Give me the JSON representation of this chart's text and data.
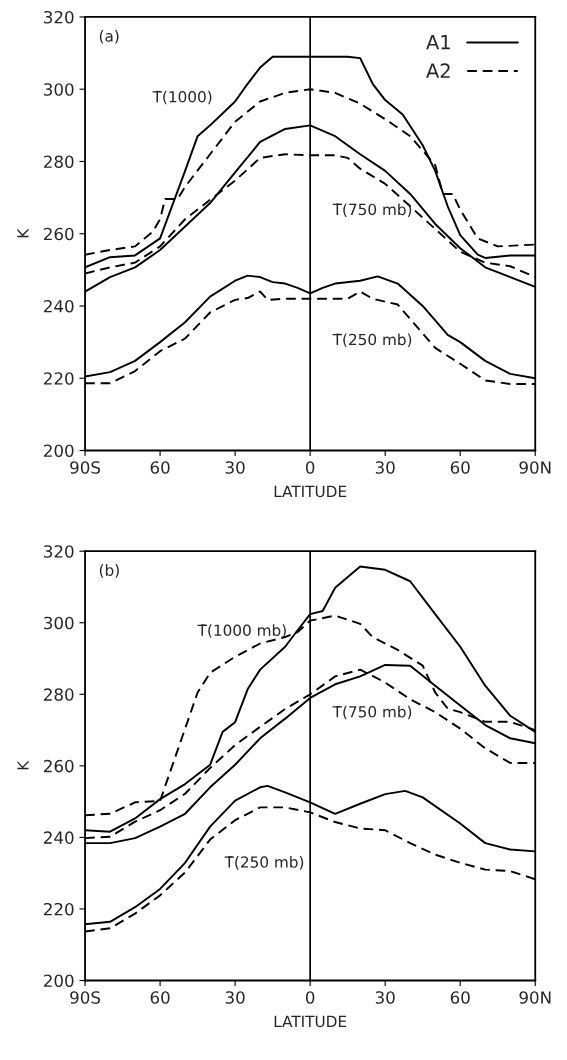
{
  "chart_data": [
    {
      "type": "line",
      "xlabel": "LATITUDE",
      "ylabel": "K",
      "xlim": [
        -90,
        90
      ],
      "ylim": [
        200,
        320
      ],
      "xticks": [
        {
          "value": -90,
          "label": "90S"
        },
        {
          "value": -60,
          "label": "60"
        },
        {
          "value": -30,
          "label": "30"
        },
        0,
        30,
        60,
        {
          "value": 90,
          "label": "90N"
        }
      ],
      "yticks": [
        200,
        220,
        240,
        260,
        280,
        300,
        320
      ],
      "grid": false,
      "legend": "top right",
      "marker": "none",
      "ref_lines": [
        {
          "axis": "x",
          "value": 0,
          "color": "#000000",
          "line_style": "solid"
        }
      ],
      "annotations": [
        "(a)",
        "T̄(1000)",
        "T̄(750 mb)",
        "T̄(250 mb)"
      ],
      "series": [
        {
          "name": "A1",
          "color": "#000000",
          "line_style": "solid",
          "x": [
            -90,
            -80,
            -70,
            -60,
            -50,
            -45,
            -40,
            -30,
            -25,
            -20,
            -15,
            -10,
            0,
            15,
            20,
            25,
            30,
            37,
            45,
            50,
            55,
            60,
            67,
            70,
            80,
            90
          ],
          "values": [
            250.7,
            253.5,
            254,
            258.7,
            277.4,
            287,
            290,
            296.6,
            301.5,
            306,
            309,
            309,
            309,
            309,
            308.6,
            301.5,
            297,
            293,
            284.5,
            277.4,
            267.6,
            259.6,
            254.2,
            253.3,
            254,
            254
          ]
        },
        {
          "color": "#000000",
          "line_style": "solid",
          "x": [
            -90,
            -80,
            -70,
            -60,
            -50,
            -40,
            -30,
            -20,
            -10,
            0,
            10,
            20,
            30,
            40,
            50,
            60,
            70,
            80,
            90
          ],
          "values": [
            244,
            248,
            250.7,
            255.5,
            262,
            268.5,
            277,
            285.4,
            289,
            290,
            287,
            282,
            277.4,
            271,
            262.7,
            256,
            250.7,
            248,
            245.3
          ]
        },
        {
          "color": "#000000",
          "line_style": "solid",
          "x": [
            -90,
            -80,
            -70,
            -60,
            -50,
            -40,
            -30,
            -25,
            -20,
            -15,
            -10,
            -5,
            0,
            5,
            10,
            20,
            27,
            35,
            45,
            55,
            60,
            70,
            80,
            90
          ],
          "values": [
            220.5,
            221.7,
            224.8,
            230,
            235.5,
            242.6,
            247,
            248.4,
            248,
            246.6,
            246.2,
            245,
            243.5,
            245,
            246.2,
            247,
            248.2,
            246.2,
            240,
            232,
            230,
            224.8,
            221.2,
            220
          ]
        },
        {
          "name": "A2",
          "color": "#000000",
          "line_style": "dashed",
          "x": [
            -90,
            -80,
            -70,
            -63,
            -60,
            -58,
            -53,
            -50,
            -40,
            -30,
            -20,
            -10,
            0,
            10,
            20,
            30,
            40,
            50,
            53,
            57,
            60,
            67,
            75,
            90
          ],
          "values": [
            254.2,
            255.5,
            256.5,
            260.5,
            264,
            269.6,
            269.6,
            273,
            282,
            291,
            296.6,
            299,
            300,
            299,
            296,
            291.7,
            287,
            279,
            271,
            271,
            266.7,
            258.7,
            256.5,
            257
          ]
        },
        {
          "color": "#000000",
          "line_style": "dashed",
          "x": [
            -90,
            -80,
            -70,
            -60,
            -50,
            -40,
            -30,
            -20,
            -10,
            0,
            10,
            15,
            20,
            30,
            40,
            50,
            60,
            70,
            80,
            90
          ],
          "values": [
            249,
            250.7,
            252,
            256.5,
            264,
            269.4,
            274.7,
            281,
            282,
            281.7,
            281.7,
            281,
            278,
            273.8,
            267.6,
            261.3,
            255,
            252,
            251,
            248
          ]
        },
        {
          "color": "#000000",
          "line_style": "dashed",
          "x": [
            -90,
            -80,
            -70,
            -60,
            -50,
            -40,
            -30,
            -25,
            -20,
            -17,
            -10,
            0,
            15,
            20,
            25,
            35,
            40,
            50,
            60,
            70,
            80,
            90
          ],
          "values": [
            218.6,
            218.6,
            222,
            227.5,
            231,
            238.2,
            241.7,
            242.2,
            244,
            241.7,
            242,
            242,
            242,
            244,
            242,
            240.4,
            236.4,
            228.4,
            224,
            219.4,
            218.4,
            218.4
          ]
        }
      ]
    },
    {
      "type": "line",
      "xlabel": "LATITUDE",
      "ylabel": "K",
      "xlim": [
        -90,
        90
      ],
      "ylim": [
        200,
        320
      ],
      "xticks": [
        {
          "value": -90,
          "label": "90S"
        },
        {
          "value": -60,
          "label": "60"
        },
        {
          "value": -30,
          "label": "30"
        },
        0,
        30,
        60,
        {
          "value": 90,
          "label": "90N"
        }
      ],
      "yticks": [
        200,
        220,
        240,
        260,
        280,
        300,
        320
      ],
      "grid": false,
      "legend": false,
      "marker": "none",
      "ref_lines": [
        {
          "axis": "x",
          "value": 0,
          "color": "#000000",
          "line_style": "solid"
        }
      ],
      "annotations": [
        "(b)",
        "T̄(1000 mb)",
        "T̄(750 mb)",
        "T̄(250 mb)"
      ],
      "series": [
        {
          "color": "#000000",
          "line_style": "solid",
          "x": [
            -90,
            -80,
            -70,
            -60,
            -50,
            -40,
            -35,
            -30,
            -25,
            -20,
            -10,
            -5,
            0,
            5,
            10,
            20,
            30,
            40,
            50,
            60,
            70,
            80,
            90
          ],
          "values": [
            242,
            241.6,
            245.3,
            250.7,
            254.9,
            260.3,
            269.5,
            272.2,
            281.4,
            286.9,
            293.3,
            297.9,
            302.4,
            303.3,
            309.8,
            315.7,
            314.8,
            311.6,
            302.4,
            293.3,
            282.4,
            274,
            269.5
          ]
        },
        {
          "color": "#000000",
          "line_style": "solid",
          "x": [
            -90,
            -80,
            -70,
            -60,
            -50,
            -40,
            -30,
            -20,
            -10,
            0,
            10,
            20,
            30,
            40,
            50,
            60,
            70,
            80,
            90
          ],
          "values": [
            238.4,
            238.4,
            239.8,
            243,
            246.6,
            254,
            260.3,
            267.7,
            273.2,
            279,
            282.8,
            285,
            288.2,
            288,
            282.4,
            276.9,
            271.4,
            267.7,
            266.3
          ]
        },
        {
          "color": "#000000",
          "line_style": "solid",
          "x": [
            -90,
            -80,
            -70,
            -60,
            -50,
            -40,
            -30,
            -20,
            -17,
            -10,
            0,
            10,
            20,
            30,
            38,
            45,
            60,
            70,
            80,
            90
          ],
          "values": [
            215.7,
            216.4,
            220.5,
            225.6,
            232.9,
            243,
            250.3,
            254,
            254.4,
            252.6,
            249.8,
            246.6,
            249.4,
            252.1,
            253,
            251.2,
            243.9,
            238.4,
            236.6,
            236.1
          ]
        },
        {
          "color": "#000000",
          "line_style": "dashed",
          "x": [
            -90,
            -80,
            -70,
            -60,
            -55,
            -50,
            -45,
            -40,
            -30,
            -20,
            -10,
            -5,
            0,
            10,
            20,
            25,
            35,
            45,
            50,
            55,
            60,
            70,
            80,
            90
          ],
          "values": [
            246.2,
            246.6,
            249.8,
            250.2,
            260.3,
            270.4,
            280.5,
            286,
            290.5,
            294.2,
            296,
            297.4,
            300.6,
            302,
            299.7,
            296,
            292.4,
            288,
            280.5,
            276,
            275,
            272.3,
            272.3,
            270
          ]
        },
        {
          "color": "#000000",
          "line_style": "dashed",
          "x": [
            -90,
            -80,
            -70,
            -60,
            -50,
            -40,
            -30,
            -20,
            -10,
            0,
            10,
            20,
            30,
            40,
            50,
            60,
            70,
            80,
            90
          ],
          "values": [
            239.8,
            240.2,
            244.4,
            247.6,
            252.2,
            259.4,
            265.8,
            270.9,
            275.9,
            280,
            285,
            286.9,
            283.3,
            278.6,
            275,
            270.4,
            264.9,
            260.8,
            260.8
          ]
        },
        {
          "color": "#000000",
          "line_style": "dashed",
          "x": [
            -90,
            -80,
            -70,
            -60,
            -50,
            -40,
            -30,
            -20,
            -10,
            0,
            10,
            20,
            30,
            40,
            50,
            60,
            70,
            80,
            90
          ],
          "values": [
            213.7,
            214.6,
            218.7,
            223.8,
            230.2,
            239.4,
            244.8,
            248.4,
            248.4,
            247,
            244.3,
            242.5,
            242,
            238.4,
            235.2,
            232.9,
            231,
            230.6,
            228.3
          ]
        }
      ]
    }
  ]
}
